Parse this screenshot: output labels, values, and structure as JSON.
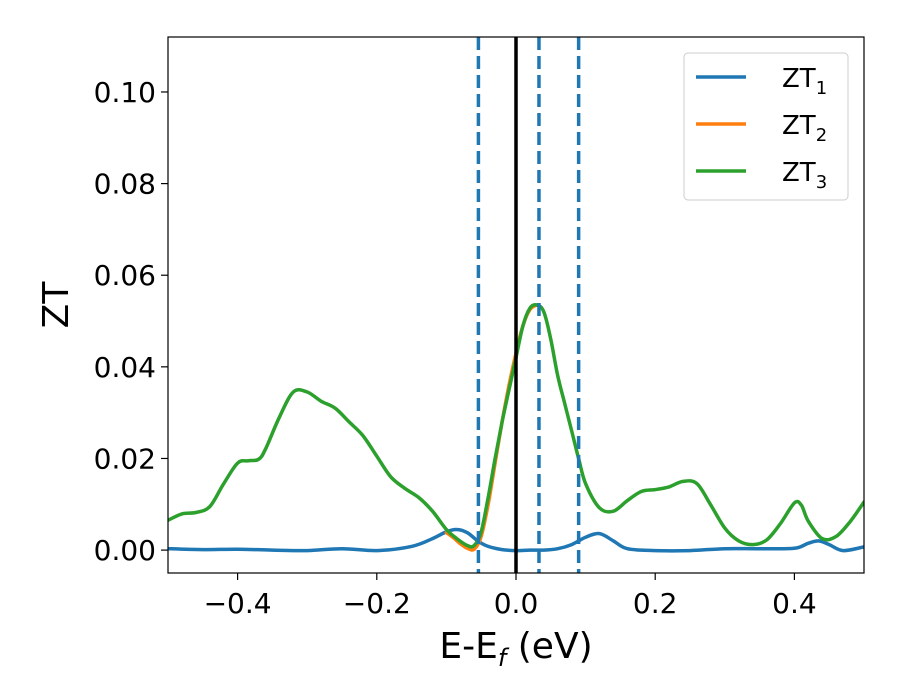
{
  "chart_data": {
    "type": "line",
    "xlabel": {
      "base": "E-E",
      "sub": "f",
      "rest": " (eV)"
    },
    "ylabel": "ZT",
    "xlim": [
      -0.5,
      0.5
    ],
    "ylim": [
      -0.005,
      0.112
    ],
    "xticks": [
      -0.4,
      -0.2,
      0.0,
      0.2,
      0.4
    ],
    "xtick_labels": [
      "−0.4",
      "−0.2",
      "0.0",
      "0.2",
      "0.4"
    ],
    "yticks": [
      0.0,
      0.02,
      0.04,
      0.06,
      0.08,
      0.1
    ],
    "ytick_labels": [
      "0.00",
      "0.02",
      "0.04",
      "0.06",
      "0.08",
      "0.10"
    ],
    "grid": false,
    "legend_position": "top-right",
    "vlines": [
      {
        "x": 0.0,
        "color": "#000000",
        "style": "solid"
      },
      {
        "x": -0.054,
        "color": "#1f77b4",
        "style": "dashed"
      },
      {
        "x": 0.033,
        "color": "#1f77b4",
        "style": "dashed"
      },
      {
        "x": 0.09,
        "color": "#1f77b4",
        "style": "dashed"
      }
    ],
    "series": [
      {
        "name": "ZT",
        "sub": "1",
        "color": "#1f77b4",
        "x": [
          -0.5,
          -0.45,
          -0.4,
          -0.35,
          -0.3,
          -0.25,
          -0.2,
          -0.15,
          -0.12,
          -0.1,
          -0.085,
          -0.07,
          -0.055,
          -0.04,
          -0.02,
          0.0,
          0.02,
          0.04,
          0.06,
          0.08,
          0.1,
          0.12,
          0.14,
          0.16,
          0.2,
          0.25,
          0.3,
          0.35,
          0.4,
          0.42,
          0.435,
          0.45,
          0.47,
          0.5
        ],
        "y": [
          0.0003,
          0.0001,
          0.0002,
          0.0,
          -0.0001,
          0.0003,
          -0.0001,
          0.0008,
          0.0025,
          0.004,
          0.0045,
          0.0038,
          0.002,
          0.0008,
          0.0001,
          -0.0001,
          0.0,
          0.0,
          0.0003,
          0.0012,
          0.0028,
          0.0036,
          0.002,
          0.0003,
          -0.0001,
          -0.0001,
          0.0003,
          0.0003,
          0.0004,
          0.0015,
          0.002,
          0.0012,
          -0.0001,
          0.0007
        ]
      },
      {
        "name": "ZT",
        "sub": "2",
        "color": "#ff7f0e",
        "x": [
          -0.1,
          -0.09,
          -0.08,
          -0.07,
          -0.06,
          -0.05,
          -0.04,
          -0.03,
          -0.02,
          -0.01,
          0.0,
          0.01,
          0.02,
          0.03
        ],
        "y": [
          0.0038,
          0.0027,
          0.0014,
          0.0004,
          0.0002,
          0.003,
          0.01,
          0.019,
          0.028,
          0.036,
          0.043,
          0.049,
          0.0525,
          0.0535
        ]
      },
      {
        "name": "ZT",
        "sub": "3",
        "color": "#2ca02c",
        "x": [
          -0.5,
          -0.48,
          -0.46,
          -0.44,
          -0.42,
          -0.4,
          -0.385,
          -0.37,
          -0.36,
          -0.34,
          -0.32,
          -0.3,
          -0.28,
          -0.26,
          -0.24,
          -0.22,
          -0.2,
          -0.18,
          -0.16,
          -0.14,
          -0.12,
          -0.1,
          -0.085,
          -0.07,
          -0.06,
          -0.05,
          -0.04,
          -0.03,
          -0.02,
          -0.01,
          0.0,
          0.01,
          0.02,
          0.03,
          0.04,
          0.05,
          0.06,
          0.07,
          0.08,
          0.09,
          0.1,
          0.12,
          0.14,
          0.16,
          0.18,
          0.2,
          0.22,
          0.24,
          0.26,
          0.28,
          0.3,
          0.32,
          0.34,
          0.36,
          0.38,
          0.4,
          0.41,
          0.42,
          0.44,
          0.46,
          0.48,
          0.5
        ],
        "y": [
          0.0065,
          0.0079,
          0.0082,
          0.0095,
          0.0145,
          0.019,
          0.0195,
          0.0198,
          0.022,
          0.029,
          0.0345,
          0.0345,
          0.0325,
          0.031,
          0.028,
          0.025,
          0.0205,
          0.016,
          0.0135,
          0.0115,
          0.0085,
          0.0045,
          0.0025,
          0.001,
          0.001,
          0.004,
          0.0115,
          0.02,
          0.028,
          0.035,
          0.042,
          0.049,
          0.0528,
          0.0535,
          0.052,
          0.046,
          0.038,
          0.032,
          0.026,
          0.02,
          0.0145,
          0.0092,
          0.0085,
          0.0108,
          0.0128,
          0.0132,
          0.0138,
          0.015,
          0.0145,
          0.0098,
          0.0048,
          0.002,
          0.0012,
          0.0022,
          0.0058,
          0.0103,
          0.0098,
          0.0063,
          0.0025,
          0.003,
          0.0062,
          0.0105
        ]
      }
    ]
  }
}
